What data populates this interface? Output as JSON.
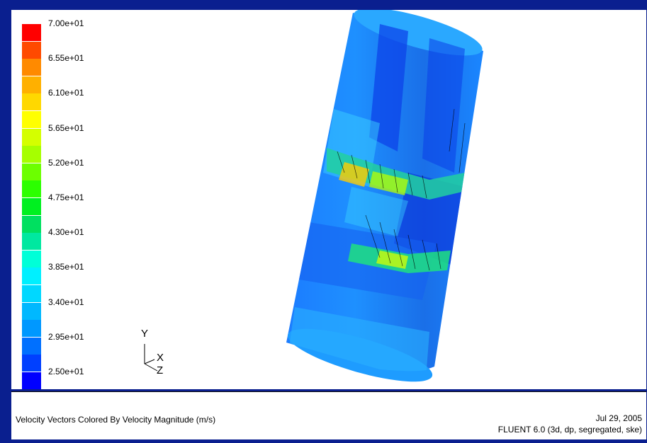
{
  "legend": {
    "labels": [
      "7.00e+01",
      "6.55e+01",
      "6.10e+01",
      "5.65e+01",
      "5.20e+01",
      "4.75e+01",
      "4.30e+01",
      "3.85e+01",
      "3.40e+01",
      "2.95e+01",
      "2.50e+01"
    ],
    "colors": [
      "#ff0000",
      "#ff4a00",
      "#ff8a00",
      "#ffb000",
      "#ffd800",
      "#ffff00",
      "#d4ff00",
      "#a6ff00",
      "#6cff00",
      "#2cff00",
      "#00f020",
      "#00e060",
      "#00e8a0",
      "#00ffd8",
      "#00f0ff",
      "#00d8ff",
      "#00b8ff",
      "#0098ff",
      "#0070ff",
      "#0040ff",
      "#0000ff"
    ]
  },
  "axes": {
    "y": "Y",
    "x": "X",
    "z": "Z"
  },
  "caption": {
    "title": "Velocity Vectors Colored By Velocity Magnitude (m/s)",
    "date": "Jul 29, 2005",
    "solver": "FLUENT 6.0 (3d, dp, segregated, ske)"
  }
}
